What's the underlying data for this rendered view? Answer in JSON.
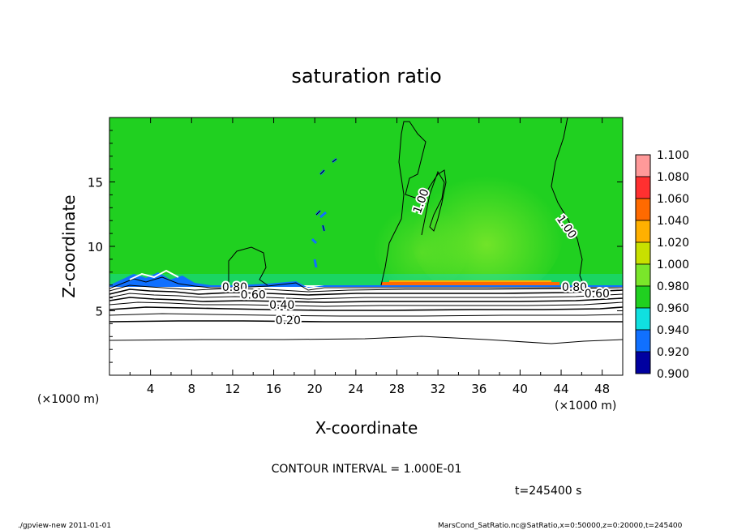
{
  "chart_data": {
    "type": "heatmap",
    "title": "saturation ratio",
    "xlabel": "X-coordinate",
    "ylabel": "Z-coordinate",
    "x_unit": "(×1000 m)",
    "y_unit": "(×1000 m)",
    "xlim": [
      0,
      50
    ],
    "ylim": [
      0,
      20
    ],
    "x_ticks": [
      4,
      8,
      12,
      16,
      20,
      24,
      28,
      32,
      36,
      40,
      44,
      48
    ],
    "y_ticks": [
      5,
      10,
      15
    ],
    "colorbar": {
      "levels": [
        "1.100",
        "1.080",
        "1.060",
        "1.040",
        "1.020",
        "1.000",
        "0.980",
        "0.960",
        "0.940",
        "0.920",
        "0.900"
      ],
      "colors": [
        "#ff9999",
        "#ff3030",
        "#ff6a00",
        "#ffb000",
        "#c8e000",
        "#7ae62a",
        "#20d020",
        "#10e0e0",
        "#1070ff",
        "#0000a0",
        "#6600aa"
      ]
    },
    "contour_labels": [
      {
        "text": "0.80",
        "x": 12.2,
        "z": 6.8
      },
      {
        "text": "0.60",
        "x": 14.0,
        "z": 6.2
      },
      {
        "text": "0.40",
        "x": 16.8,
        "z": 5.4
      },
      {
        "text": "0.20",
        "x": 17.4,
        "z": 4.2
      },
      {
        "text": "1.00",
        "x": 30.4,
        "z": 13.5
      },
      {
        "text": "1.00",
        "x": 44.5,
        "z": 11.5
      },
      {
        "text": "0.80",
        "x": 45.3,
        "z": 6.8
      },
      {
        "text": "0.60",
        "x": 47.5,
        "z": 6.3
      }
    ],
    "contour_interval": "CONTOUR INTERVAL = 1.000E-01",
    "time": "t=245400 s"
  },
  "footer": {
    "left": "./gpview-new  2011-01-01",
    "right": "MarsCond_SatRatio.nc@SatRatio,x=0:50000,z=0:20000,t=245400"
  }
}
